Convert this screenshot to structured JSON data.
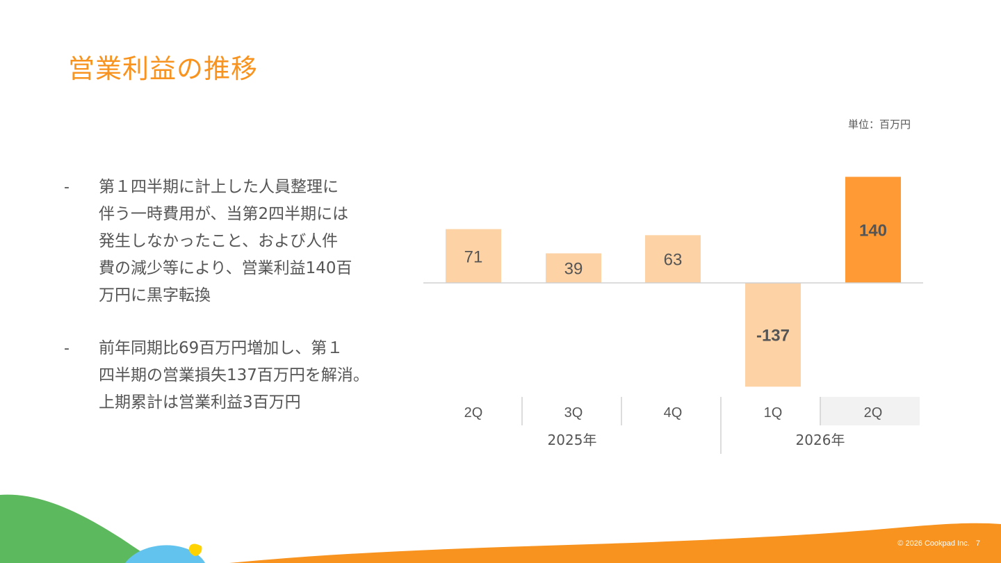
{
  "title": "営業利益の推移",
  "unit": "単位：百万円",
  "bullets": [
    {
      "marker": "-",
      "text": "第１四半期に計上した人員整理に\n伴う一時費用が、当第2四半期には\n発生しなかったこと、および人件\n費の減少等により、営業利益140百\n万円に黒字転換"
    },
    {
      "marker": "-",
      "text": "前年同期比69百万円増加し、第１\n四半期の営業損失137百万円を解消。\n上期累計は営業利益3百万円"
    }
  ],
  "chart_data": {
    "type": "bar",
    "categories": [
      "2Q",
      "3Q",
      "4Q",
      "1Q",
      "2Q"
    ],
    "values": [
      71,
      39,
      63,
      -137,
      140
    ],
    "value_labels": [
      "71",
      "39",
      "63",
      "-137",
      "140"
    ],
    "year_groups": [
      {
        "label": "2025年",
        "span": [
          0,
          2
        ]
      },
      {
        "label": "2026年",
        "span": [
          3,
          4
        ]
      }
    ],
    "highlight_index": 4,
    "colors": {
      "default": "#FDD3A6",
      "highlight": "#FF9A35",
      "label": "#555555",
      "axis": "#D0D0D0",
      "highlight_cell": "#F2F2F2"
    }
  },
  "footer": {
    "copyright": "© 2026 Cookpad Inc.",
    "page": "7"
  },
  "colors": {
    "accent": "#F7931E",
    "green": "#5DB95D",
    "blue": "#62C4EE",
    "yellow": "#FFD200"
  }
}
